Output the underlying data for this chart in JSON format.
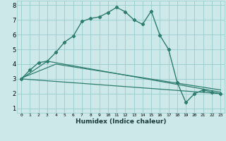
{
  "title": "",
  "xlabel": "Humidex (Indice chaleur)",
  "bg_color": "#cce8e8",
  "grid_color": "#99cccc",
  "line_color": "#2e7d6e",
  "xlim": [
    -0.5,
    23.5
  ],
  "ylim": [
    0.7,
    8.3
  ],
  "xticks": [
    0,
    1,
    2,
    3,
    4,
    5,
    6,
    7,
    8,
    9,
    10,
    11,
    12,
    13,
    14,
    15,
    16,
    17,
    18,
    19,
    20,
    21,
    22,
    23
  ],
  "yticks": [
    1,
    2,
    3,
    4,
    5,
    6,
    7,
    8
  ],
  "curve1_x": [
    0,
    1,
    2,
    3,
    4,
    5,
    6,
    7,
    8,
    9,
    10,
    11,
    12,
    13,
    14,
    15,
    16,
    17,
    18,
    19,
    20,
    21,
    22,
    23
  ],
  "curve1_y": [
    3.0,
    3.6,
    4.1,
    4.2,
    4.8,
    5.5,
    5.9,
    6.9,
    7.1,
    7.2,
    7.5,
    7.85,
    7.55,
    7.0,
    6.7,
    7.6,
    5.95,
    5.0,
    2.75,
    1.4,
    2.0,
    2.25,
    2.1,
    2.0
  ],
  "curve2_x": [
    0,
    23
  ],
  "curve2_y": [
    3.0,
    2.0
  ],
  "curve3_x": [
    0,
    3,
    23
  ],
  "curve3_y": [
    3.0,
    4.2,
    2.1
  ],
  "curve4_x": [
    0,
    4,
    23
  ],
  "curve4_y": [
    3.05,
    4.0,
    2.25
  ]
}
